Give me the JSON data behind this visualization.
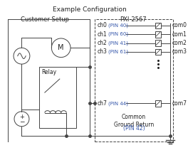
{
  "title": "Example Configuration",
  "customer_label": "Customer Setup",
  "pxi_label": "PXI-2567",
  "channels": [
    "ch0",
    "ch1",
    "ch2",
    "ch3"
  ],
  "pins": [
    "(PIN 40)",
    "(PIN 60)",
    "(PIN 41)",
    "(PIN 61)"
  ],
  "coms": [
    "com0",
    "com1",
    "com2",
    "com3"
  ],
  "ch7_label": "ch7",
  "ch7_pin": "(PIN 44)",
  "ch7_com": "com7",
  "ground_label": "Common\nGround Return",
  "ground_pin": "(PIN 42)",
  "pin_color": "#3355aa",
  "line_color": "#444444",
  "bg_color": "#ffffff",
  "text_color": "#222222",
  "figsize": [
    2.64,
    2.25
  ],
  "dpi": 100
}
